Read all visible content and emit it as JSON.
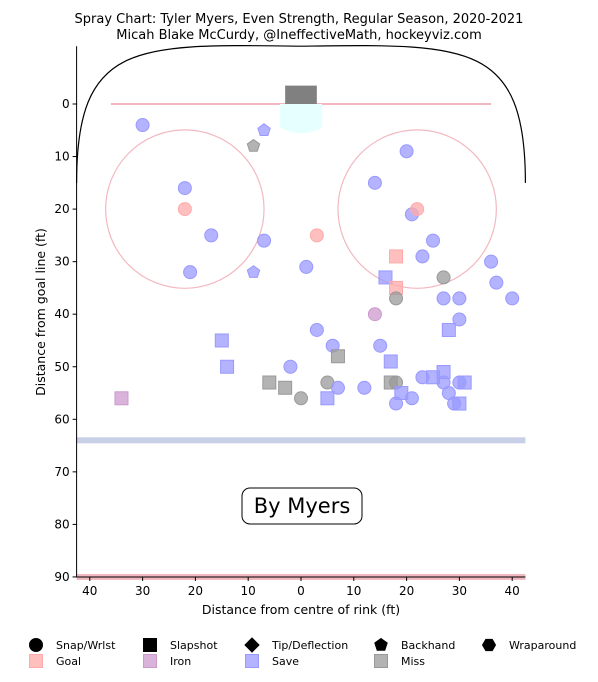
{
  "chart_data": {
    "type": "scatter",
    "title": "Spray Chart: Tyler Myers, Even Strength, Regular Season, 2020-2021",
    "subtitle": "Micah Blake McCurdy, @IneffectiveMath, hockeyviz.com",
    "xlabel": "Distance from centre of rink (ft)",
    "ylabel": "Distance from goal line (ft)",
    "xlim": [
      42.5,
      -42.5
    ],
    "ylim": [
      90,
      -11
    ],
    "x_ticks": [
      40,
      30,
      20,
      10,
      0,
      10,
      20,
      30,
      40
    ],
    "y_ticks": [
      0,
      10,
      20,
      30,
      40,
      50,
      60,
      70,
      80,
      90
    ],
    "annotation": "By Myers",
    "colors": {
      "save": "#9999ff",
      "goal": "#ffaaaa",
      "iron": "#cc99cc",
      "miss": "#999999",
      "rink_red": "#f2b8c0",
      "blue_line": "#c8d0e8",
      "crease": "#e6ffff",
      "net": "#808080"
    },
    "legend": {
      "shapes": [
        "Snap/Wrlst",
        "Slapshot",
        "Tip/Deflection",
        "Backhand",
        "Wraparound"
      ],
      "outcomes": [
        "Goal",
        "Iron",
        "Save",
        "Miss"
      ]
    },
    "points": [
      {
        "x": 30,
        "y": 4,
        "shape": "circle",
        "outcome": "save"
      },
      {
        "x": 22,
        "y": 16,
        "shape": "circle",
        "outcome": "save"
      },
      {
        "x": 22,
        "y": 20,
        "shape": "circle",
        "outcome": "goal"
      },
      {
        "x": 17,
        "y": 25,
        "shape": "circle",
        "outcome": "save"
      },
      {
        "x": 21,
        "y": 32,
        "shape": "circle",
        "outcome": "save"
      },
      {
        "x": 7,
        "y": 5,
        "shape": "pentagon",
        "outcome": "save"
      },
      {
        "x": 9,
        "y": 8,
        "shape": "pentagon",
        "outcome": "miss"
      },
      {
        "x": 7,
        "y": 26,
        "shape": "circle",
        "outcome": "save"
      },
      {
        "x": 9,
        "y": 32,
        "shape": "pentagon",
        "outcome": "save"
      },
      {
        "x": -1,
        "y": 31,
        "shape": "circle",
        "outcome": "save"
      },
      {
        "x": -3,
        "y": 25,
        "shape": "circle",
        "outcome": "goal"
      },
      {
        "x": -14,
        "y": 15,
        "shape": "circle",
        "outcome": "save"
      },
      {
        "x": -20,
        "y": 9,
        "shape": "circle",
        "outcome": "save"
      },
      {
        "x": -21,
        "y": 21,
        "shape": "circle",
        "outcome": "save"
      },
      {
        "x": -22,
        "y": 20,
        "shape": "circle",
        "outcome": "goal"
      },
      {
        "x": -25,
        "y": 26,
        "shape": "circle",
        "outcome": "save"
      },
      {
        "x": -23,
        "y": 29,
        "shape": "circle",
        "outcome": "save"
      },
      {
        "x": -18,
        "y": 29,
        "shape": "square",
        "outcome": "goal"
      },
      {
        "x": -16,
        "y": 33,
        "shape": "square",
        "outcome": "save"
      },
      {
        "x": -18,
        "y": 35,
        "shape": "square",
        "outcome": "goal"
      },
      {
        "x": -18,
        "y": 37,
        "shape": "circle",
        "outcome": "miss"
      },
      {
        "x": -14,
        "y": 40,
        "shape": "circle",
        "outcome": "iron"
      },
      {
        "x": -27,
        "y": 33,
        "shape": "circle",
        "outcome": "miss"
      },
      {
        "x": -27,
        "y": 37,
        "shape": "circle",
        "outcome": "save"
      },
      {
        "x": -30,
        "y": 37,
        "shape": "circle",
        "outcome": "save"
      },
      {
        "x": -36,
        "y": 30,
        "shape": "circle",
        "outcome": "save"
      },
      {
        "x": -37,
        "y": 34,
        "shape": "circle",
        "outcome": "save"
      },
      {
        "x": -40,
        "y": 37,
        "shape": "circle",
        "outcome": "save"
      },
      {
        "x": -28,
        "y": 43,
        "shape": "square",
        "outcome": "save"
      },
      {
        "x": -30,
        "y": 41,
        "shape": "circle",
        "outcome": "save"
      },
      {
        "x": -3,
        "y": 43,
        "shape": "circle",
        "outcome": "save"
      },
      {
        "x": -6,
        "y": 46,
        "shape": "circle",
        "outcome": "save"
      },
      {
        "x": -7,
        "y": 48,
        "shape": "square",
        "outcome": "miss"
      },
      {
        "x": -15,
        "y": 46,
        "shape": "circle",
        "outcome": "save"
      },
      {
        "x": -17,
        "y": 49,
        "shape": "square",
        "outcome": "save"
      },
      {
        "x": 15,
        "y": 45,
        "shape": "square",
        "outcome": "save"
      },
      {
        "x": 14,
        "y": 50,
        "shape": "square",
        "outcome": "save"
      },
      {
        "x": 2,
        "y": 50,
        "shape": "circle",
        "outcome": "save"
      },
      {
        "x": 6,
        "y": 53,
        "shape": "square",
        "outcome": "miss"
      },
      {
        "x": 3,
        "y": 54,
        "shape": "square",
        "outcome": "miss"
      },
      {
        "x": 0,
        "y": 56,
        "shape": "circle",
        "outcome": "miss"
      },
      {
        "x": -5,
        "y": 53,
        "shape": "circle",
        "outcome": "miss"
      },
      {
        "x": -5,
        "y": 56,
        "shape": "square",
        "outcome": "save"
      },
      {
        "x": -7,
        "y": 54,
        "shape": "circle",
        "outcome": "save"
      },
      {
        "x": -12,
        "y": 54,
        "shape": "circle",
        "outcome": "save"
      },
      {
        "x": -17,
        "y": 53,
        "shape": "square",
        "outcome": "miss"
      },
      {
        "x": -18,
        "y": 53,
        "shape": "circle",
        "outcome": "miss"
      },
      {
        "x": -19,
        "y": 55,
        "shape": "square",
        "outcome": "save"
      },
      {
        "x": -18,
        "y": 57,
        "shape": "circle",
        "outcome": "save"
      },
      {
        "x": -21,
        "y": 56,
        "shape": "circle",
        "outcome": "save"
      },
      {
        "x": -23,
        "y": 52,
        "shape": "circle",
        "outcome": "save"
      },
      {
        "x": -25,
        "y": 52,
        "shape": "square",
        "outcome": "save"
      },
      {
        "x": -27,
        "y": 51,
        "shape": "square",
        "outcome": "save"
      },
      {
        "x": -27,
        "y": 53,
        "shape": "circle",
        "outcome": "save"
      },
      {
        "x": -28,
        "y": 55,
        "shape": "circle",
        "outcome": "save"
      },
      {
        "x": -30,
        "y": 53,
        "shape": "circle",
        "outcome": "save"
      },
      {
        "x": -31,
        "y": 53,
        "shape": "square",
        "outcome": "save"
      },
      {
        "x": -29,
        "y": 57,
        "shape": "circle",
        "outcome": "save"
      },
      {
        "x": -30,
        "y": 57,
        "shape": "square",
        "outcome": "save"
      },
      {
        "x": 34,
        "y": 56,
        "shape": "square",
        "outcome": "iron"
      }
    ]
  }
}
